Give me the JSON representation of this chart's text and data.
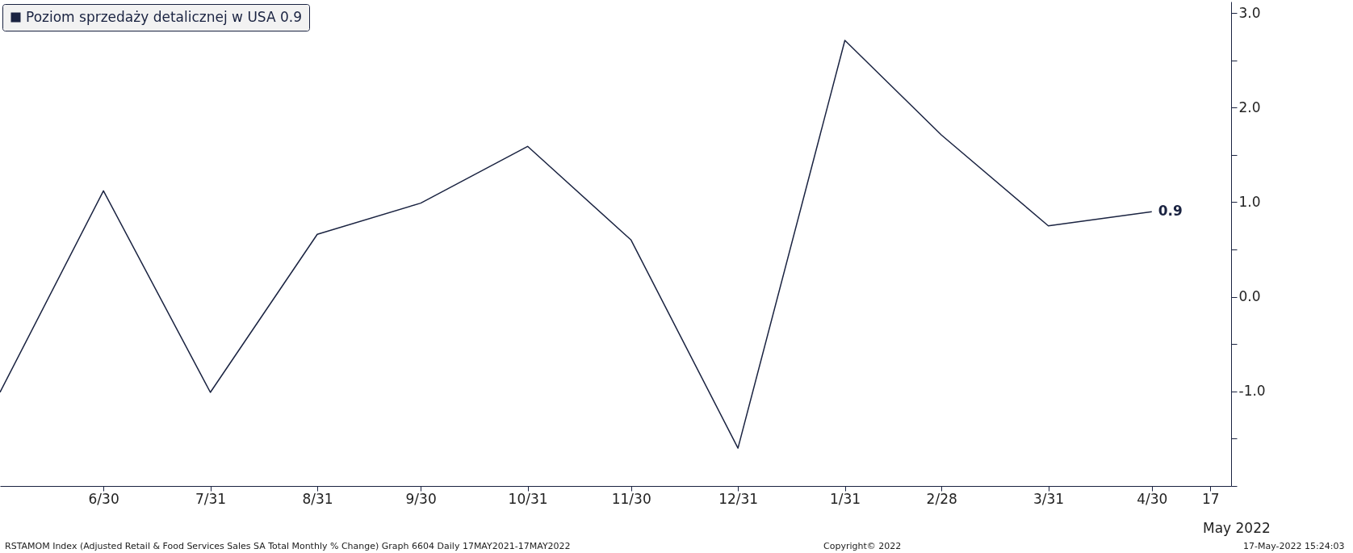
{
  "chart_data": {
    "type": "line",
    "x": [
      "2021-05-31",
      "2021-06-30",
      "2021-07-31",
      "2021-08-31",
      "2021-09-30",
      "2021-10-31",
      "2021-11-30",
      "2021-12-31",
      "2022-01-31",
      "2022-02-28",
      "2022-03-31",
      "2022-04-30"
    ],
    "series": [
      {
        "name": "Poziom sprzedaży detalicznej w USA 0.9",
        "color": "#1a2341",
        "values": [
          -1.01,
          1.12,
          -1.01,
          0.66,
          0.99,
          1.59,
          0.6,
          -1.6,
          2.71,
          1.71,
          0.75,
          0.9
        ],
        "value_labels": [
          null,
          null,
          null,
          null,
          null,
          null,
          null,
          null,
          null,
          null,
          null,
          "0.9"
        ]
      }
    ],
    "xlim": [
      "2021-05-31",
      "2022-05-23"
    ],
    "xticks": [
      {
        "value": "2021-06-30",
        "label": "6/30"
      },
      {
        "value": "2021-07-31",
        "label": "7/31"
      },
      {
        "value": "2021-08-31",
        "label": "8/31"
      },
      {
        "value": "2021-09-30",
        "label": "9/30"
      },
      {
        "value": "2021-10-31",
        "label": "10/31"
      },
      {
        "value": "2021-11-30",
        "label": "11/30"
      },
      {
        "value": "2021-12-31",
        "label": "12/31"
      },
      {
        "value": "2022-01-31",
        "label": "1/31"
      },
      {
        "value": "2022-02-28",
        "label": "2/28"
      },
      {
        "value": "2022-03-31",
        "label": "3/31"
      },
      {
        "value": "2022-04-30",
        "label": "4/30"
      },
      {
        "value": "2022-05-17",
        "label": "17"
      }
    ],
    "ylim": [
      -2,
      3.12
    ],
    "yticks": [
      {
        "value": -2,
        "label": null
      },
      {
        "value": -1.5,
        "label": null
      },
      {
        "value": -1,
        "label": "-1.0"
      },
      {
        "value": -0.5,
        "label": null
      },
      {
        "value": 0,
        "label": "0.0"
      },
      {
        "value": 0.5,
        "label": null
      },
      {
        "value": 1,
        "label": "1.0"
      },
      {
        "value": 1.5,
        "label": null
      },
      {
        "value": 2,
        "label": "2.0"
      },
      {
        "value": 2.5,
        "label": null
      },
      {
        "value": 3,
        "label": "3.0"
      }
    ],
    "grid": false,
    "legend": "top left",
    "marker": "none",
    "line_style": "solid",
    "annotations": [
      "May 2022",
      "RSTAMOM Index (Adjusted Retail & Food Services Sales SA Total Monthly % Change) Graph 6604  Daily 17MAY2021-17MAY2022",
      "Copyright© 2022",
      "17-May-2022 15:24:03"
    ]
  }
}
